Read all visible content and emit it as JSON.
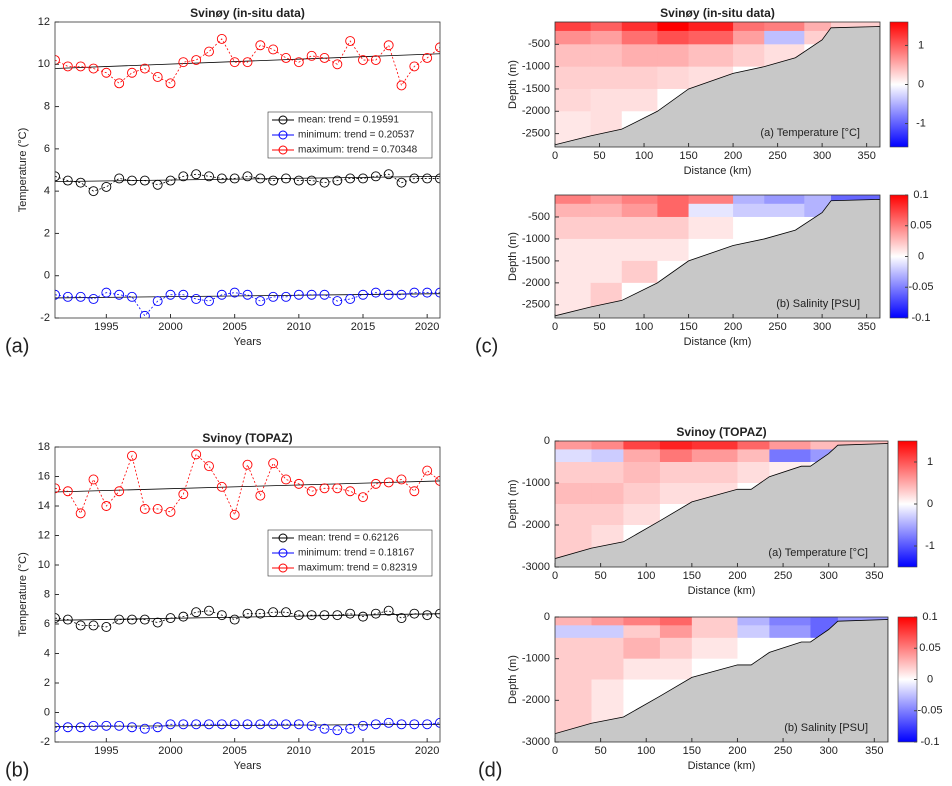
{
  "chart_data": [
    {
      "type": "line",
      "title": "Svinøy (in-situ data)",
      "panel_label": "(a)",
      "xlabel": "Years",
      "ylabel": "Temperature (°C)",
      "x": [
        1991,
        1992,
        1993,
        1994,
        1995,
        1996,
        1997,
        1998,
        1999,
        2000,
        2001,
        2002,
        2003,
        2004,
        2005,
        2006,
        2007,
        2008,
        2009,
        2010,
        2011,
        2012,
        2013,
        2014,
        2015,
        2016,
        2017,
        2018,
        2019,
        2020,
        2021
      ],
      "xlim": [
        1991,
        2021
      ],
      "xticks": [
        1995,
        2000,
        2005,
        2010,
        2015,
        2020
      ],
      "ylim": [
        -2,
        12
      ],
      "yticks": [
        -2,
        0,
        2,
        4,
        6,
        8,
        10,
        12
      ],
      "series": [
        {
          "name": "mean: trend = 0.19591",
          "color": "#000000",
          "fit": [
            4.45,
            4.7
          ],
          "values": [
            4.7,
            4.5,
            4.4,
            4.0,
            4.2,
            4.6,
            4.5,
            4.5,
            4.3,
            4.5,
            4.7,
            4.8,
            4.7,
            4.6,
            4.6,
            4.7,
            4.6,
            4.5,
            4.6,
            4.5,
            4.5,
            4.4,
            4.5,
            4.6,
            4.6,
            4.7,
            4.8,
            4.4,
            4.6,
            4.6,
            4.6
          ]
        },
        {
          "name": "minimum: trend = 0.20537",
          "color": "#0000ff",
          "fit": [
            -1.05,
            -0.85
          ],
          "values": [
            -0.9,
            -1.0,
            -1.0,
            -1.1,
            -0.8,
            -0.9,
            -1.0,
            -1.9,
            -1.2,
            -0.9,
            -0.9,
            -1.1,
            -1.2,
            -0.9,
            -0.8,
            -0.9,
            -1.2,
            -1.0,
            -1.0,
            -0.9,
            -0.9,
            -0.9,
            -1.2,
            -1.1,
            -0.9,
            -0.8,
            -0.9,
            -0.9,
            -0.8,
            -0.8,
            -0.8
          ]
        },
        {
          "name": "maximum: trend = 0.70348",
          "color": "#ff0000",
          "fit": [
            9.8,
            10.5
          ],
          "values": [
            10.2,
            9.9,
            9.9,
            9.8,
            9.6,
            9.1,
            9.6,
            9.8,
            9.4,
            9.1,
            10.1,
            10.2,
            10.6,
            11.2,
            10.1,
            10.1,
            10.9,
            10.7,
            10.3,
            10.1,
            10.4,
            10.3,
            10.0,
            11.1,
            10.2,
            10.2,
            10.9,
            9.0,
            9.9,
            10.3,
            10.8
          ]
        }
      ]
    },
    {
      "type": "heatmap",
      "title": "Svinøy (in-situ data)",
      "panel_label": "(c)",
      "xlabel": "Distance (km)",
      "ylabel": "Depth (m)",
      "annotation": "(a) Temperature [°C]",
      "xlim": [
        0,
        365
      ],
      "xticks": [
        0,
        50,
        100,
        150,
        200,
        250,
        300,
        350
      ],
      "ylim": [
        -2800,
        0
      ],
      "yticks": [
        -2500,
        -2000,
        -1500,
        -1000,
        -500
      ],
      "x_edges": [
        0,
        40,
        75,
        115,
        150,
        200,
        235,
        280,
        310,
        365
      ],
      "y_edges": [
        0,
        -200,
        -500,
        -1000,
        -1500,
        -2000,
        -2800
      ],
      "values": [
        [
          1.2,
          1.0,
          1.3,
          1.6,
          1.4,
          0.9,
          0.8,
          0.5,
          0.3
        ],
        [
          0.7,
          0.6,
          0.9,
          1.1,
          1.0,
          0.6,
          -0.4,
          0.3,
          0
        ],
        [
          0.4,
          0.4,
          0.5,
          0.5,
          0.4,
          0.3,
          0.2,
          0,
          0
        ],
        [
          0.3,
          0.3,
          0.3,
          0.25,
          0.2,
          0,
          0,
          0,
          0
        ],
        [
          0.25,
          0.2,
          0.2,
          0,
          0,
          0,
          0,
          0,
          0
        ],
        [
          0.15,
          0.2,
          0,
          0,
          0,
          0,
          0,
          0,
          0
        ]
      ],
      "seafloor": {
        "distance": [
          0,
          40,
          75,
          115,
          150,
          200,
          235,
          270,
          300,
          310,
          365
        ],
        "depth": [
          -2750,
          -2550,
          -2400,
          -2000,
          -1500,
          -1150,
          -1000,
          -800,
          -400,
          -130,
          -100
        ]
      },
      "clim": [
        -1.6,
        1.6
      ],
      "cticks": [
        -1,
        0,
        1
      ]
    },
    {
      "type": "heatmap",
      "xlabel": "Distance (km)",
      "ylabel": "Depth (m)",
      "annotation": "(b) Salinity [PSU]",
      "xlim": [
        0,
        365
      ],
      "xticks": [
        0,
        50,
        100,
        150,
        200,
        250,
        300,
        350
      ],
      "ylim": [
        -2800,
        0
      ],
      "yticks": [
        -2500,
        -2000,
        -1500,
        -1000,
        -500
      ],
      "x_edges": [
        0,
        40,
        75,
        115,
        150,
        200,
        235,
        280,
        310,
        365
      ],
      "y_edges": [
        0,
        -200,
        -500,
        -1000,
        -1500,
        -2000,
        -2800
      ],
      "values": [
        [
          0.05,
          0.04,
          0.05,
          0.06,
          0.05,
          -0.03,
          -0.04,
          -0.03,
          -0.06
        ],
        [
          0.03,
          0.03,
          0.04,
          0.06,
          -0.01,
          -0.02,
          -0.02,
          -0.03,
          0
        ],
        [
          0.02,
          0.02,
          0.02,
          0.02,
          0.01,
          0,
          0,
          0,
          0
        ],
        [
          0.01,
          0.01,
          0.01,
          0.01,
          0,
          0,
          0,
          0,
          0
        ],
        [
          0.01,
          0.01,
          0.02,
          0,
          0,
          0,
          0,
          0,
          0
        ],
        [
          0.01,
          0.02,
          0,
          0,
          0,
          0,
          0,
          0,
          0
        ]
      ],
      "seafloor": {
        "distance": [
          0,
          40,
          75,
          115,
          150,
          200,
          235,
          270,
          300,
          310,
          365
        ],
        "depth": [
          -2750,
          -2550,
          -2400,
          -2000,
          -1500,
          -1150,
          -1000,
          -800,
          -400,
          -130,
          -100
        ]
      },
      "clim": [
        -0.1,
        0.1
      ],
      "cticks": [
        -0.1,
        -0.05,
        0,
        0.05,
        0.1
      ]
    },
    {
      "type": "line",
      "title": "Svinoy (TOPAZ)",
      "panel_label": "(b)",
      "xlabel": "Years",
      "ylabel": "Temperature (°C)",
      "x": [
        1991,
        1992,
        1993,
        1994,
        1995,
        1996,
        1997,
        1998,
        1999,
        2000,
        2001,
        2002,
        2003,
        2004,
        2005,
        2006,
        2007,
        2008,
        2009,
        2010,
        2011,
        2012,
        2013,
        2014,
        2015,
        2016,
        2017,
        2018,
        2019,
        2020,
        2021
      ],
      "xlim": [
        1991,
        2021
      ],
      "xticks": [
        1995,
        2000,
        2005,
        2010,
        2015,
        2020
      ],
      "ylim": [
        -2,
        18
      ],
      "yticks": [
        -2,
        0,
        2,
        4,
        6,
        8,
        10,
        12,
        14,
        16,
        18
      ],
      "series": [
        {
          "name": "mean: trend = 0.62126",
          "color": "#000000",
          "fit": [
            6.25,
            6.7
          ],
          "values": [
            6.4,
            6.3,
            5.9,
            5.9,
            5.8,
            6.3,
            6.3,
            6.3,
            6.1,
            6.4,
            6.5,
            6.8,
            6.9,
            6.6,
            6.3,
            6.7,
            6.7,
            6.8,
            6.8,
            6.6,
            6.6,
            6.6,
            6.6,
            6.7,
            6.5,
            6.7,
            6.9,
            6.4,
            6.7,
            6.6,
            6.7
          ]
        },
        {
          "name": "minimum: trend = 0.18167",
          "color": "#0000ff",
          "fit": [
            -0.95,
            -0.8
          ],
          "values": [
            -1.0,
            -1.0,
            -1.0,
            -0.9,
            -0.9,
            -0.9,
            -1.0,
            -1.1,
            -1.0,
            -0.8,
            -0.8,
            -0.8,
            -0.8,
            -0.8,
            -0.8,
            -0.8,
            -0.8,
            -0.8,
            -0.8,
            -0.8,
            -0.9,
            -1.1,
            -1.2,
            -1.1,
            -0.9,
            -0.8,
            -0.7,
            -0.8,
            -0.8,
            -0.8,
            -0.7
          ]
        },
        {
          "name": "maximum: trend = 0.82319",
          "color": "#ff0000",
          "fit": [
            14.95,
            15.7
          ],
          "values": [
            15.2,
            15.0,
            13.5,
            15.8,
            14.0,
            15.0,
            17.4,
            13.8,
            13.8,
            13.6,
            14.8,
            17.5,
            16.7,
            15.3,
            13.4,
            16.8,
            14.7,
            16.9,
            15.8,
            15.5,
            15.0,
            15.2,
            15.2,
            15.0,
            14.6,
            15.5,
            15.6,
            15.8,
            15.0,
            16.4,
            15.7
          ]
        }
      ]
    },
    {
      "type": "heatmap",
      "title": "Svinoy (TOPAZ)",
      "panel_label": "(d)",
      "xlabel": "Distance (km)",
      "ylabel": "Depth (m)",
      "annotation": "(a) Temperature [°C]",
      "xlim": [
        0,
        365
      ],
      "xticks": [
        0,
        50,
        100,
        150,
        200,
        250,
        300,
        350
      ],
      "ylim": [
        -3000,
        0
      ],
      "yticks": [
        -3000,
        -2000,
        -1000,
        0
      ],
      "x_edges": [
        0,
        40,
        75,
        115,
        150,
        200,
        235,
        280,
        310,
        365
      ],
      "y_edges": [
        0,
        -200,
        -500,
        -1000,
        -1500,
        -2000,
        -3000
      ],
      "values": [
        [
          0.6,
          0.7,
          1.1,
          1.3,
          1.2,
          0.9,
          0.6,
          0.4,
          0.4
        ],
        [
          -0.2,
          -0.3,
          0.5,
          0.8,
          0.6,
          0.4,
          -0.8,
          -0.6,
          0
        ],
        [
          0.3,
          0.3,
          0.4,
          0.3,
          0.3,
          0.2,
          0.1,
          0,
          0
        ],
        [
          0.4,
          0.4,
          0.3,
          0.2,
          0.2,
          0,
          0,
          0,
          0
        ],
        [
          0.3,
          0.3,
          0.2,
          0,
          0,
          0,
          0,
          0,
          0
        ],
        [
          0.3,
          0.2,
          0,
          0,
          0,
          0,
          0,
          0,
          0
        ]
      ],
      "seafloor": {
        "distance": [
          0,
          40,
          75,
          115,
          150,
          200,
          215,
          235,
          270,
          280,
          300,
          310,
          365
        ],
        "depth": [
          -2800,
          -2550,
          -2400,
          -1900,
          -1450,
          -1150,
          -1150,
          -850,
          -600,
          -600,
          -300,
          -100,
          -60
        ]
      },
      "clim": [
        -1.5,
        1.5
      ],
      "cticks": [
        -1,
        0,
        1
      ]
    },
    {
      "type": "heatmap",
      "xlabel": "Distance (km)",
      "ylabel": "Depth (m)",
      "annotation": "(b) Salinity [PSU]",
      "xlim": [
        0,
        365
      ],
      "xticks": [
        0,
        50,
        100,
        150,
        200,
        250,
        300,
        350
      ],
      "ylim": [
        -3000,
        0
      ],
      "yticks": [
        -3000,
        -2000,
        -1000,
        0
      ],
      "x_edges": [
        0,
        40,
        75,
        115,
        150,
        200,
        235,
        280,
        310,
        365
      ],
      "y_edges": [
        0,
        -200,
        -500,
        -1000,
        -1500,
        -2000,
        -3000
      ],
      "values": [
        [
          0.03,
          0.04,
          0.05,
          0.06,
          0.02,
          -0.03,
          -0.05,
          -0.06,
          -0.04
        ],
        [
          -0.02,
          -0.02,
          0.02,
          0.04,
          0.02,
          -0.02,
          -0.04,
          -0.06,
          0
        ],
        [
          0.02,
          0.02,
          0.03,
          0.02,
          0.01,
          0,
          0,
          0,
          0
        ],
        [
          0.02,
          0.02,
          0.01,
          0.01,
          0,
          0,
          0,
          0,
          0
        ],
        [
          0.02,
          0.01,
          0,
          0,
          0,
          0,
          0,
          0,
          0
        ],
        [
          0.02,
          0.01,
          0,
          0,
          0,
          0,
          0,
          0,
          0
        ]
      ],
      "seafloor": {
        "distance": [
          0,
          40,
          75,
          115,
          150,
          200,
          215,
          235,
          270,
          280,
          300,
          310,
          365
        ],
        "depth": [
          -2800,
          -2550,
          -2400,
          -1900,
          -1450,
          -1150,
          -1150,
          -850,
          -600,
          -600,
          -300,
          -100,
          -60
        ]
      },
      "clim": [
        -0.1,
        0.1
      ],
      "cticks": [
        -0.1,
        -0.05,
        0,
        0.05,
        0.1
      ]
    }
  ]
}
